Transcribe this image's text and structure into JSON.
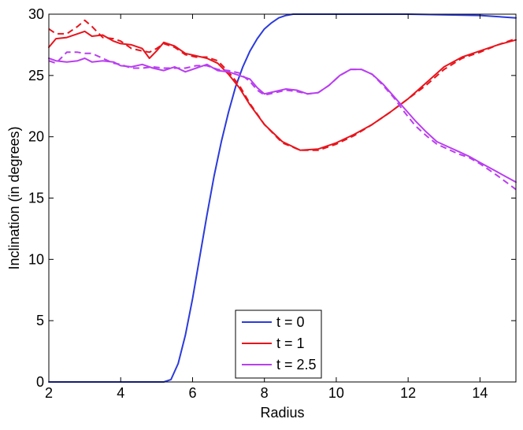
{
  "chart_data": {
    "type": "line",
    "xlabel": "Radius",
    "ylabel": "Inclination (in degrees)",
    "xlim": [
      2,
      15
    ],
    "ylim": [
      0,
      30
    ],
    "xticks": [
      2,
      4,
      6,
      8,
      10,
      12,
      14
    ],
    "yticks": [
      0,
      5,
      10,
      15,
      20,
      25,
      30
    ],
    "grid": false,
    "legend_position": "bottom-center",
    "series": [
      {
        "name": "t = 0",
        "color": "#2b3bdb",
        "style": "solid",
        "x": [
          2,
          5.2,
          5.4,
          5.6,
          5.8,
          6.0,
          6.2,
          6.4,
          6.6,
          6.8,
          7.0,
          7.2,
          7.4,
          7.6,
          7.8,
          8.0,
          8.2,
          8.4,
          8.6,
          8.8,
          9.0,
          12,
          14,
          15
        ],
        "y": [
          0,
          0,
          0.2,
          1.5,
          3.8,
          6.8,
          10.2,
          13.6,
          16.8,
          19.6,
          22.0,
          24.1,
          25.7,
          27.0,
          28.0,
          28.8,
          29.3,
          29.7,
          29.9,
          30.0,
          30.0,
          30.0,
          29.9,
          29.7
        ]
      },
      {
        "name": "t = 1",
        "color": "#e8141c",
        "style": "solid",
        "x": [
          2,
          2.2,
          2.5,
          2.8,
          3.0,
          3.2,
          3.5,
          3.8,
          4.0,
          4.3,
          4.6,
          4.8,
          5.0,
          5.2,
          5.5,
          5.8,
          6.1,
          6.4,
          6.7,
          7.0,
          7.3,
          7.6,
          8.0,
          8.5,
          9.0,
          9.5,
          10.0,
          10.5,
          11.0,
          11.5,
          12.0,
          12.5,
          13.0,
          13.5,
          14.0,
          14.5,
          15.0
        ],
        "y": [
          27.3,
          28.0,
          28.1,
          28.4,
          28.6,
          28.2,
          28.3,
          27.8,
          27.6,
          27.5,
          27.2,
          26.4,
          27.0,
          27.7,
          27.4,
          26.8,
          26.6,
          26.4,
          26.0,
          25.1,
          24.0,
          22.6,
          21.0,
          19.6,
          18.9,
          19.0,
          19.5,
          20.2,
          21.0,
          22.0,
          23.1,
          24.4,
          25.7,
          26.5,
          27.0,
          27.5,
          27.9
        ]
      },
      {
        "name": "t = 1 (dashed)",
        "color": "#e8141c",
        "style": "dashed",
        "x": [
          2,
          2.2,
          2.5,
          2.8,
          3.0,
          3.2,
          3.5,
          3.8,
          4.0,
          4.3,
          4.6,
          4.8,
          5.0,
          5.2,
          5.5,
          5.8,
          6.1,
          6.4,
          6.7,
          7.0,
          7.3,
          7.6,
          8.0,
          8.5,
          9.0,
          9.5,
          10.0,
          10.5,
          11.0,
          11.5,
          12.0,
          12.5,
          13.0,
          13.5,
          14.0,
          14.5,
          15.0
        ],
        "y": [
          28.8,
          28.4,
          28.4,
          29.0,
          29.5,
          29.0,
          28.1,
          28.0,
          27.8,
          27.2,
          27.0,
          26.9,
          27.2,
          27.6,
          27.3,
          26.7,
          26.5,
          26.5,
          26.2,
          25.3,
          24.2,
          22.7,
          21.0,
          19.5,
          18.9,
          18.9,
          19.4,
          20.1,
          21.0,
          22.0,
          23.1,
          24.2,
          25.5,
          26.4,
          26.9,
          27.5,
          28.0
        ]
      },
      {
        "name": "t = 2.5",
        "color": "#b93ef0",
        "style": "solid",
        "x": [
          2,
          2.2,
          2.5,
          2.8,
          3.0,
          3.2,
          3.5,
          3.8,
          4.0,
          4.3,
          4.6,
          4.9,
          5.2,
          5.5,
          5.8,
          6.1,
          6.4,
          6.7,
          7.0,
          7.3,
          7.6,
          7.8,
          8.0,
          8.3,
          8.6,
          8.9,
          9.2,
          9.5,
          9.8,
          10.1,
          10.4,
          10.7,
          11.0,
          11.3,
          11.6,
          11.9,
          12.2,
          12.5,
          12.8,
          13.1,
          13.4,
          13.7,
          14.0,
          14.5,
          15.0
        ],
        "y": [
          26.4,
          26.2,
          26.1,
          26.2,
          26.4,
          26.1,
          26.2,
          26.1,
          25.8,
          25.7,
          25.9,
          25.6,
          25.4,
          25.7,
          25.3,
          25.6,
          25.9,
          25.4,
          25.3,
          25.0,
          24.7,
          24.0,
          23.5,
          23.7,
          23.9,
          23.8,
          23.5,
          23.6,
          24.2,
          25.0,
          25.5,
          25.5,
          25.1,
          24.3,
          23.3,
          22.3,
          21.3,
          20.4,
          19.6,
          19.2,
          18.8,
          18.4,
          17.9,
          17.1,
          16.3
        ]
      },
      {
        "name": "t = 2.5 (dashed)",
        "color": "#b93ef0",
        "style": "dashed",
        "x": [
          2,
          2.2,
          2.5,
          2.8,
          3.0,
          3.2,
          3.5,
          3.8,
          4.0,
          4.3,
          4.6,
          4.9,
          5.2,
          5.5,
          5.8,
          6.1,
          6.4,
          6.7,
          7.0,
          7.3,
          7.6,
          7.8,
          8.0,
          8.3,
          8.6,
          8.9,
          9.2,
          9.5,
          9.8,
          10.1,
          10.4,
          10.7,
          11.0,
          11.3,
          11.6,
          11.9,
          12.2,
          12.5,
          12.8,
          13.1,
          13.4,
          13.7,
          14.0,
          14.5,
          15.0
        ],
        "y": [
          26.2,
          26.0,
          26.9,
          26.9,
          26.8,
          26.8,
          26.4,
          26.0,
          25.9,
          25.6,
          25.6,
          25.7,
          25.6,
          25.6,
          25.6,
          25.8,
          25.8,
          25.5,
          25.4,
          25.2,
          24.5,
          23.8,
          23.4,
          23.6,
          23.8,
          23.7,
          23.5,
          23.6,
          24.2,
          25.0,
          25.5,
          25.5,
          25.1,
          24.2,
          23.2,
          22.0,
          20.9,
          20.1,
          19.4,
          19.0,
          18.6,
          18.3,
          17.8,
          16.8,
          15.7
        ]
      }
    ],
    "legend": [
      {
        "label": "t = 0",
        "color": "#2b3bdb"
      },
      {
        "label": "t = 1",
        "color": "#e8141c"
      },
      {
        "label": "t = 2.5",
        "color": "#b93ef0"
      }
    ]
  }
}
